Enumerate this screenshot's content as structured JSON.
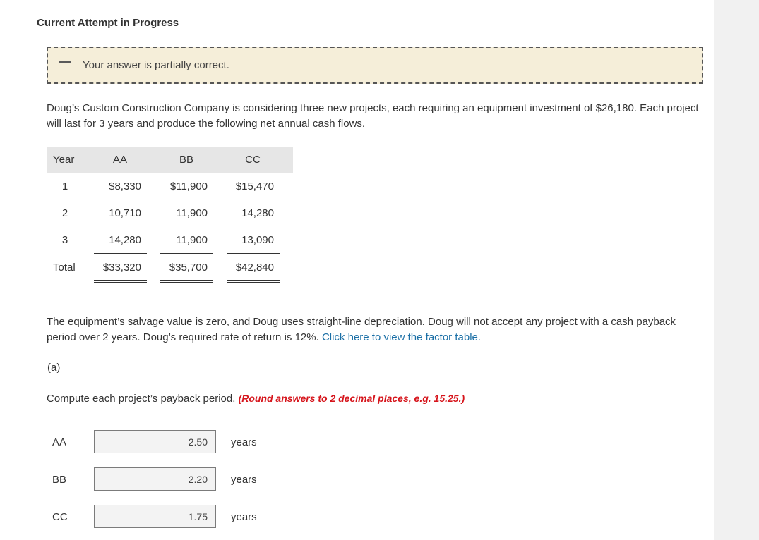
{
  "header": {
    "title": "Current Attempt in Progress"
  },
  "status": {
    "message": "Your answer is partially correct."
  },
  "problem": {
    "intro": "Doug’s Custom Construction Company is considering three new projects, each requiring an equipment investment of $26,180. Each project will last for 3 years and produce the following net annual cash flows.",
    "salvage_text": "The equipment’s salvage value is zero, and Doug uses straight-line depreciation. Doug will not accept any project with a cash payback period over 2 years. Doug’s required rate of return is 12%.",
    "factor_link": "Click here to view the factor table."
  },
  "table": {
    "headers": [
      "Year",
      "AA",
      "BB",
      "CC"
    ],
    "rows": [
      [
        "1",
        "$8,330",
        "$11,900",
        "$15,470"
      ],
      [
        "2",
        "10,710",
        "11,900",
        "14,280"
      ],
      [
        "3",
        "14,280",
        "11,900",
        "13,090"
      ]
    ],
    "total": [
      "Total",
      "$33,320",
      "$35,700",
      "$42,840"
    ]
  },
  "part_a": {
    "label": "(a)",
    "instruction": "Compute each project’s payback period.",
    "rounding_note": "(Round answers to 2 decimal places, e.g. 15.25.)",
    "answers": [
      {
        "label": "AA",
        "value": "2.50",
        "unit": "years"
      },
      {
        "label": "BB",
        "value": "2.20",
        "unit": "years"
      },
      {
        "label": "CC",
        "value": "1.75",
        "unit": "years"
      }
    ]
  }
}
